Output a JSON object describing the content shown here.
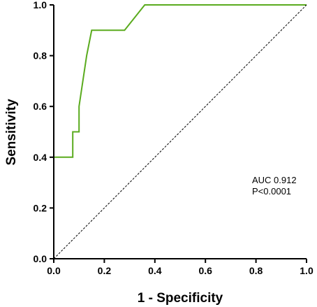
{
  "chart_data": {
    "type": "line",
    "title": "",
    "xlabel": "1 - Specificity",
    "ylabel": "Sensitivity",
    "xlim": [
      0,
      1
    ],
    "ylim": [
      0,
      1
    ],
    "x_ticks": [
      "0.0",
      "0.2",
      "0.4",
      "0.6",
      "0.8",
      "1.0"
    ],
    "y_ticks": [
      "0.0",
      "0.2",
      "0.4",
      "0.6",
      "0.8",
      "1.0"
    ],
    "grid": false,
    "series": [
      {
        "color": "#5aab1e",
        "x": [
          0,
          0,
          0.075,
          0.075,
          0.1,
          0.1,
          0.13,
          0.15,
          0.28,
          0.36,
          1.0
        ],
        "y": [
          0,
          0.4,
          0.4,
          0.5,
          0.5,
          0.6,
          0.8,
          0.9,
          0.9,
          1.0,
          1.0
        ]
      },
      {
        "color": "#000000",
        "style": "dashed",
        "x": [
          0,
          1
        ],
        "y": [
          0,
          1
        ]
      }
    ],
    "annotations": {
      "auc": "AUC 0.912",
      "p_value": "P<0.0001"
    }
  }
}
